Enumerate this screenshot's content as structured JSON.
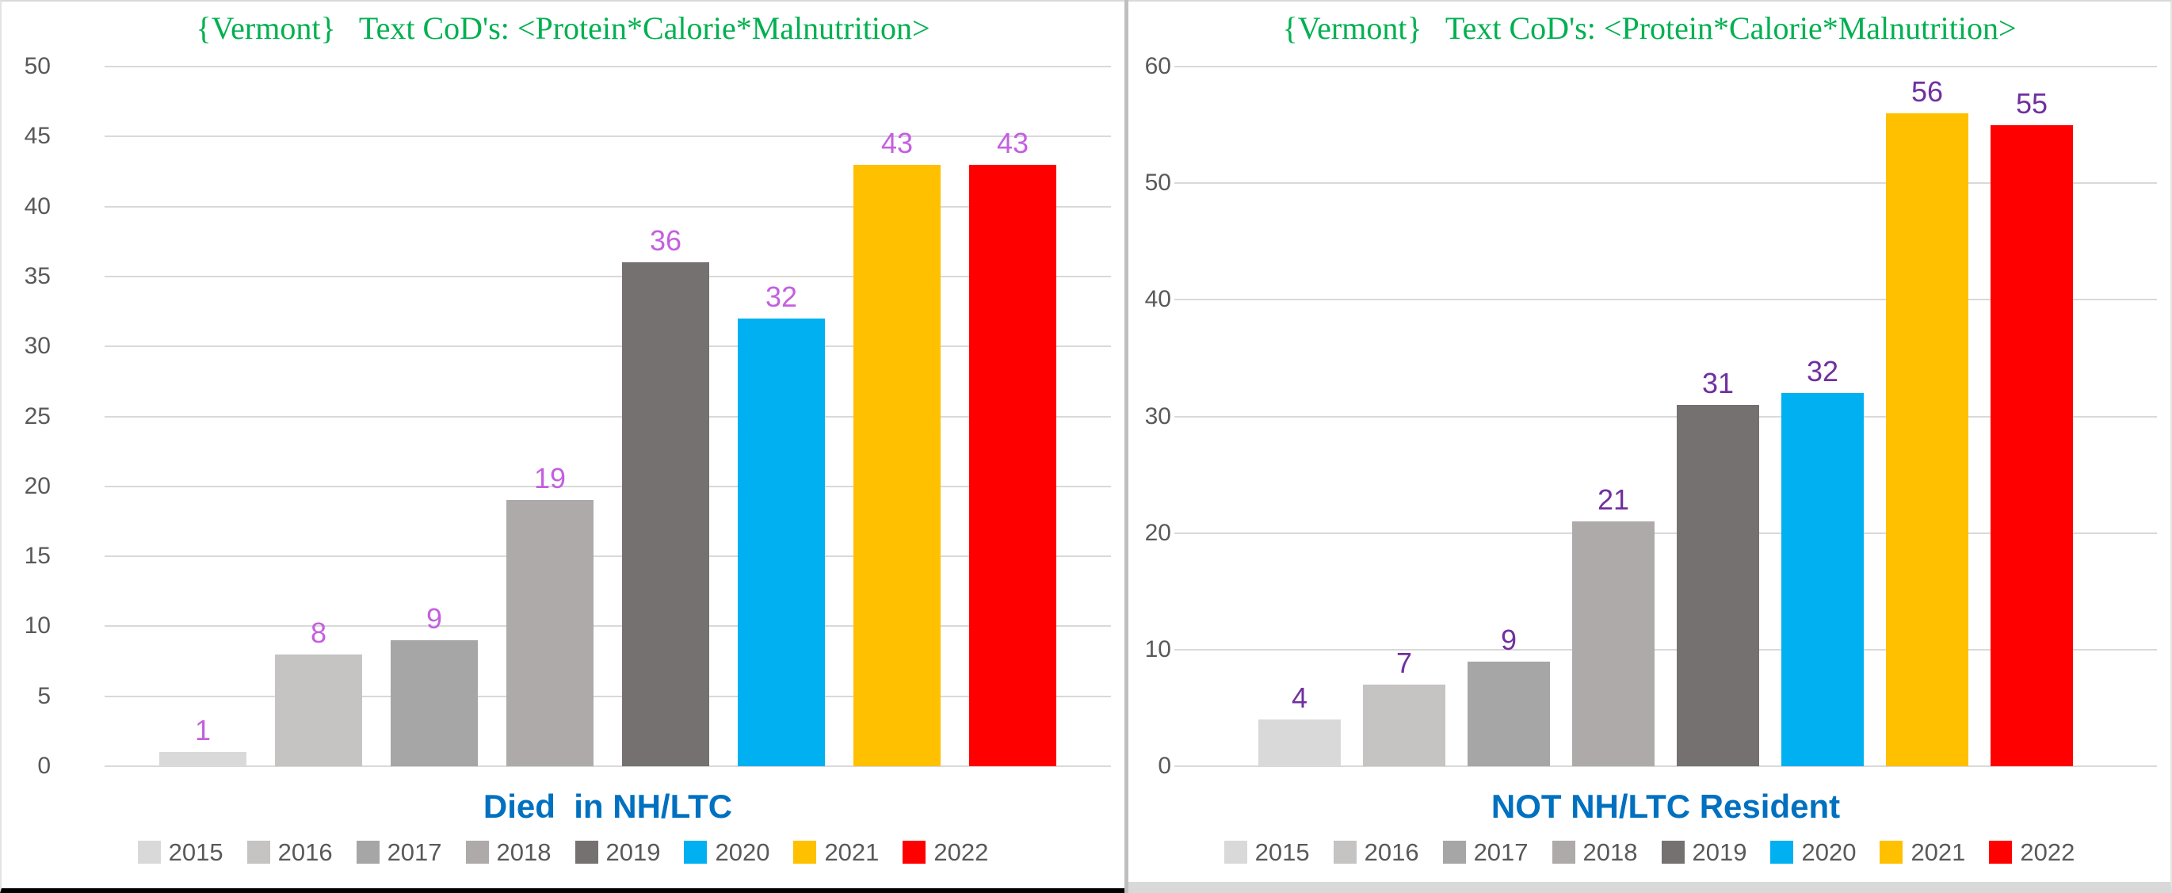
{
  "page": {
    "background": "#FFFFFF",
    "divider_color": "#BFBFBF",
    "left_panel_bottom_border": "#000000",
    "right_panel_bottom_border": "#D9D9D9"
  },
  "styles": {
    "title_color": "#00B050",
    "axis_title_color": "#0070C0",
    "tick_label_color": "#595959",
    "legend_text_color": "#595959",
    "gridline_color": "#D9D9D9",
    "axis_line_color": "#D9D9D9"
  },
  "chart_data": [
    {
      "type": "bar",
      "title": "{Vermont}   Text CoD's: <Protein*Calorie*Malnutrition>",
      "xlabel": "Died  in NH/LTC",
      "ylabel": "",
      "categories": [
        "2015",
        "2016",
        "2017",
        "2018",
        "2019",
        "2020",
        "2021",
        "2022"
      ],
      "values": [
        1,
        8,
        9,
        19,
        36,
        32,
        43,
        43
      ],
      "bar_colors": [
        "#D9D9D9",
        "#C6C3C3",
        "#A6A6A6",
        "#AEAAAA",
        "#767171",
        "#00B0F0",
        "#FFC000",
        "#FF0000"
      ],
      "data_label_color": "#C45FE0",
      "ylim": [
        0,
        50
      ],
      "ytick_step": 5,
      "grid": true,
      "legend_position": "bottom",
      "legend_entries": [
        "2015",
        "2016",
        "2017",
        "2018",
        "2019",
        "2020",
        "2021",
        "2022"
      ]
    },
    {
      "type": "bar",
      "title": "{Vermont}   Text CoD's: <Protein*Calorie*Malnutrition>",
      "xlabel": "NOT NH/LTC Resident",
      "ylabel": "",
      "categories": [
        "2015",
        "2016",
        "2017",
        "2018",
        "2019",
        "2020",
        "2021",
        "2022"
      ],
      "values": [
        4,
        7,
        9,
        21,
        31,
        32,
        56,
        55
      ],
      "bar_colors": [
        "#D9D9D9",
        "#C6C3C3",
        "#A6A6A6",
        "#AEAAAA",
        "#767171",
        "#00B0F0",
        "#FFC000",
        "#FF0000"
      ],
      "data_label_color": "#7030A0",
      "ylim": [
        0,
        60
      ],
      "ytick_step": 10,
      "grid": true,
      "legend_position": "bottom",
      "legend_entries": [
        "2015",
        "2016",
        "2017",
        "2018",
        "2019",
        "2020",
        "2021",
        "2022"
      ]
    }
  ]
}
